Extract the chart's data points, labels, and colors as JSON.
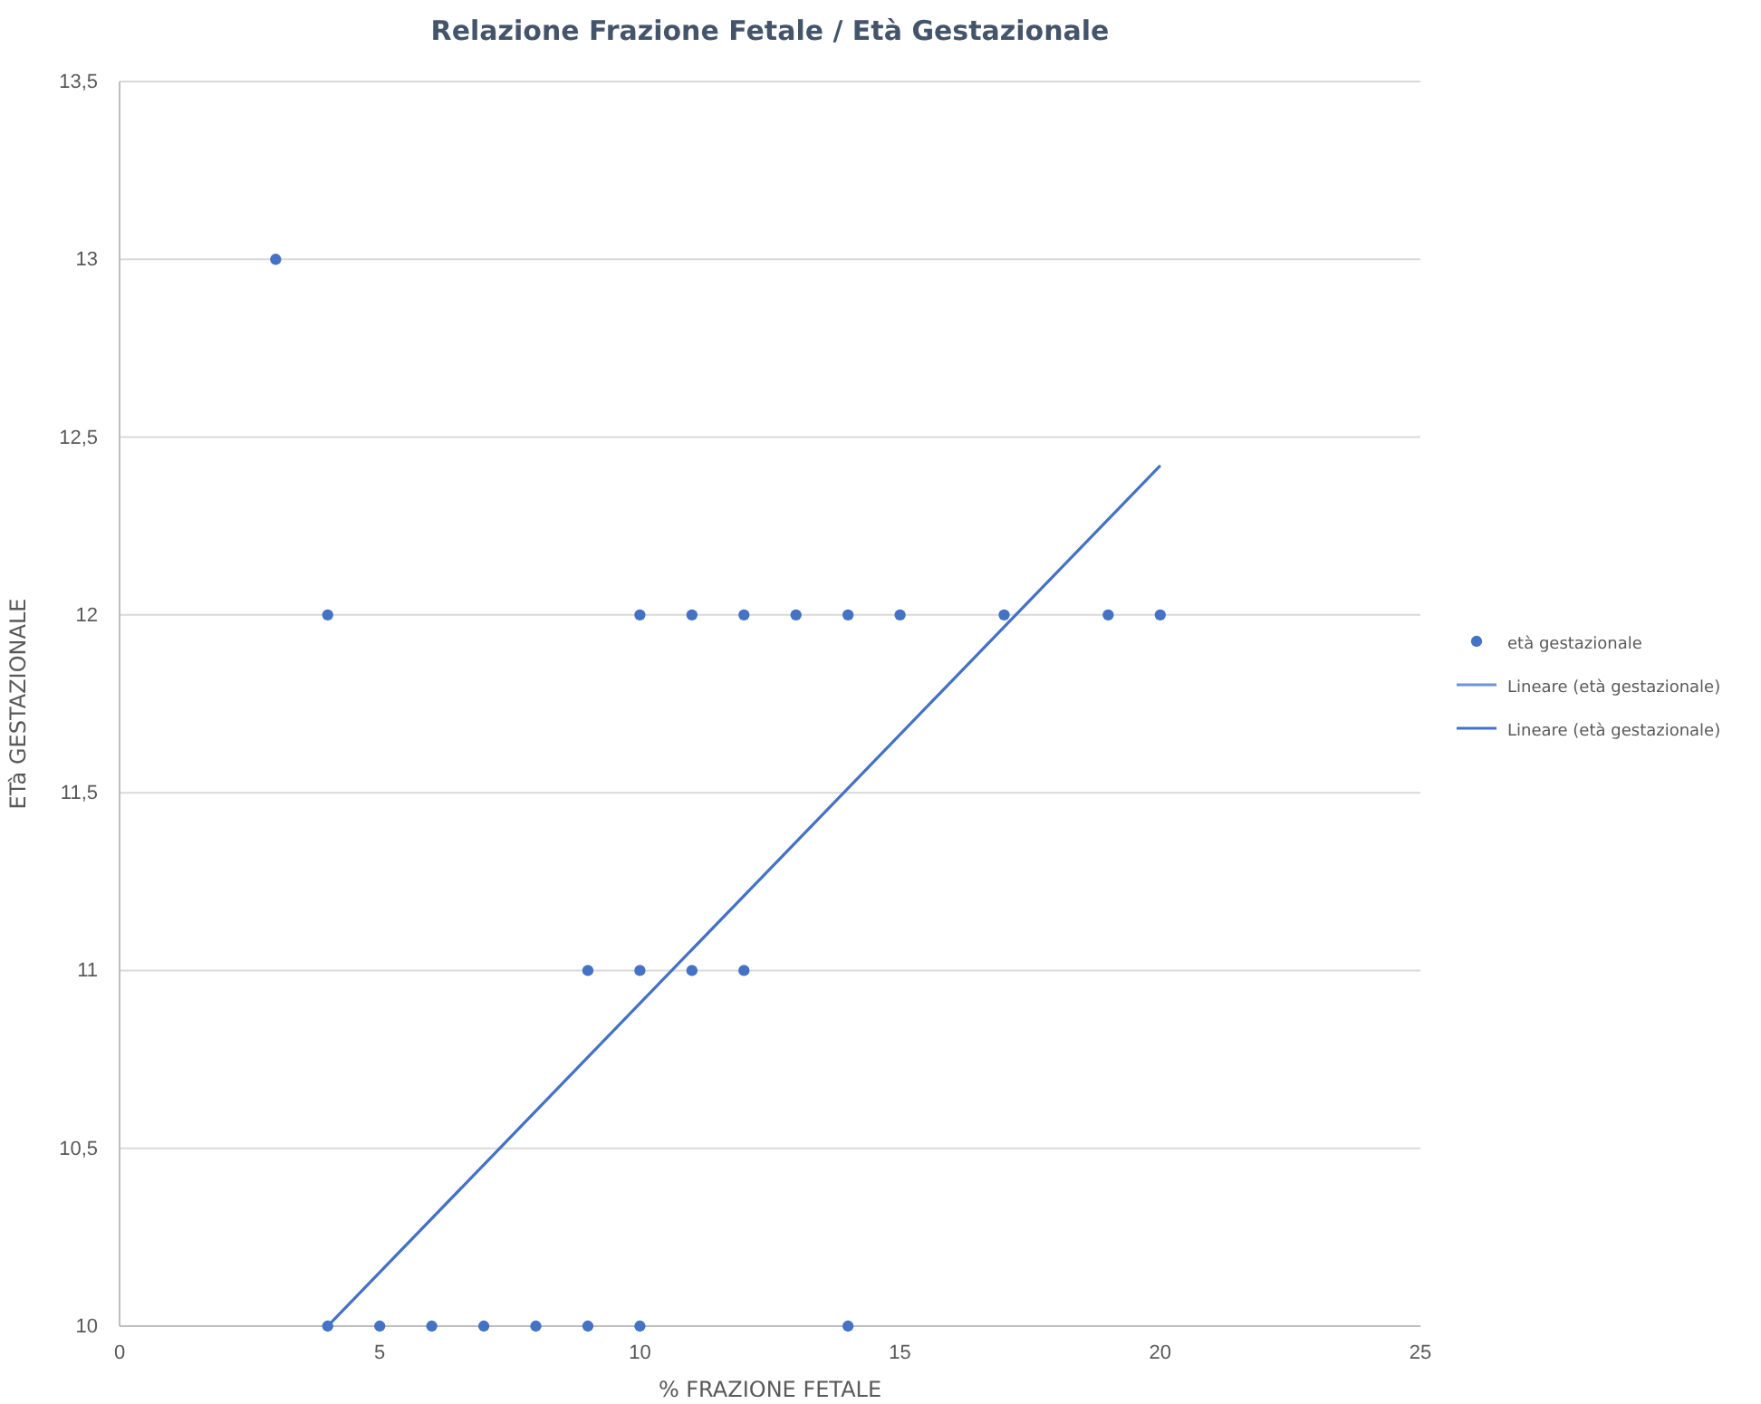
{
  "chart_data": {
    "type": "scatter",
    "title": "Relazione Frazione Fetale / Età Gestazionale",
    "xlabel": "% FRAZIONE FETALE",
    "ylabel": "ETà GESTAZIONALE",
    "xlim": [
      0,
      25
    ],
    "xticks": [
      0,
      5,
      10,
      15,
      20,
      25
    ],
    "ylim": [
      10,
      13.5
    ],
    "yticks": [
      {
        "value": 10,
        "label": "10"
      },
      {
        "value": 10.5,
        "label": "10,5"
      },
      {
        "value": 11,
        "label": "11"
      },
      {
        "value": 11.5,
        "label": "11,5"
      },
      {
        "value": 12,
        "label": "12"
      },
      {
        "value": 12.5,
        "label": "12,5"
      },
      {
        "value": 13,
        "label": "13"
      },
      {
        "value": 13.5,
        "label": "13,5"
      }
    ],
    "grid": "y",
    "legend": "right",
    "marker": "circle",
    "series": [
      {
        "name": "età gestazionale",
        "type": "scatter",
        "color": "#4472c4",
        "x": [
          3,
          4,
          10,
          11,
          12,
          13,
          14,
          15,
          17,
          19,
          20,
          9,
          10,
          11,
          12,
          4,
          5,
          6,
          7,
          8,
          9,
          10,
          14
        ],
        "values": [
          13,
          12,
          12,
          12,
          12,
          12,
          12,
          12,
          12,
          12,
          12,
          11,
          11,
          11,
          11,
          10,
          10,
          10,
          10,
          10,
          10,
          10,
          10
        ]
      },
      {
        "name": "Lineare (età gestazionale)",
        "type": "line",
        "marker": "none",
        "color": "#6f93d8",
        "x": [
          4,
          20
        ],
        "values": [
          10,
          12.42
        ]
      },
      {
        "name": "Lineare (età gestazionale)",
        "type": "line",
        "marker": "none",
        "color": "#4472c4",
        "x": [
          4,
          20
        ],
        "values": [
          10,
          12.42
        ]
      }
    ]
  }
}
